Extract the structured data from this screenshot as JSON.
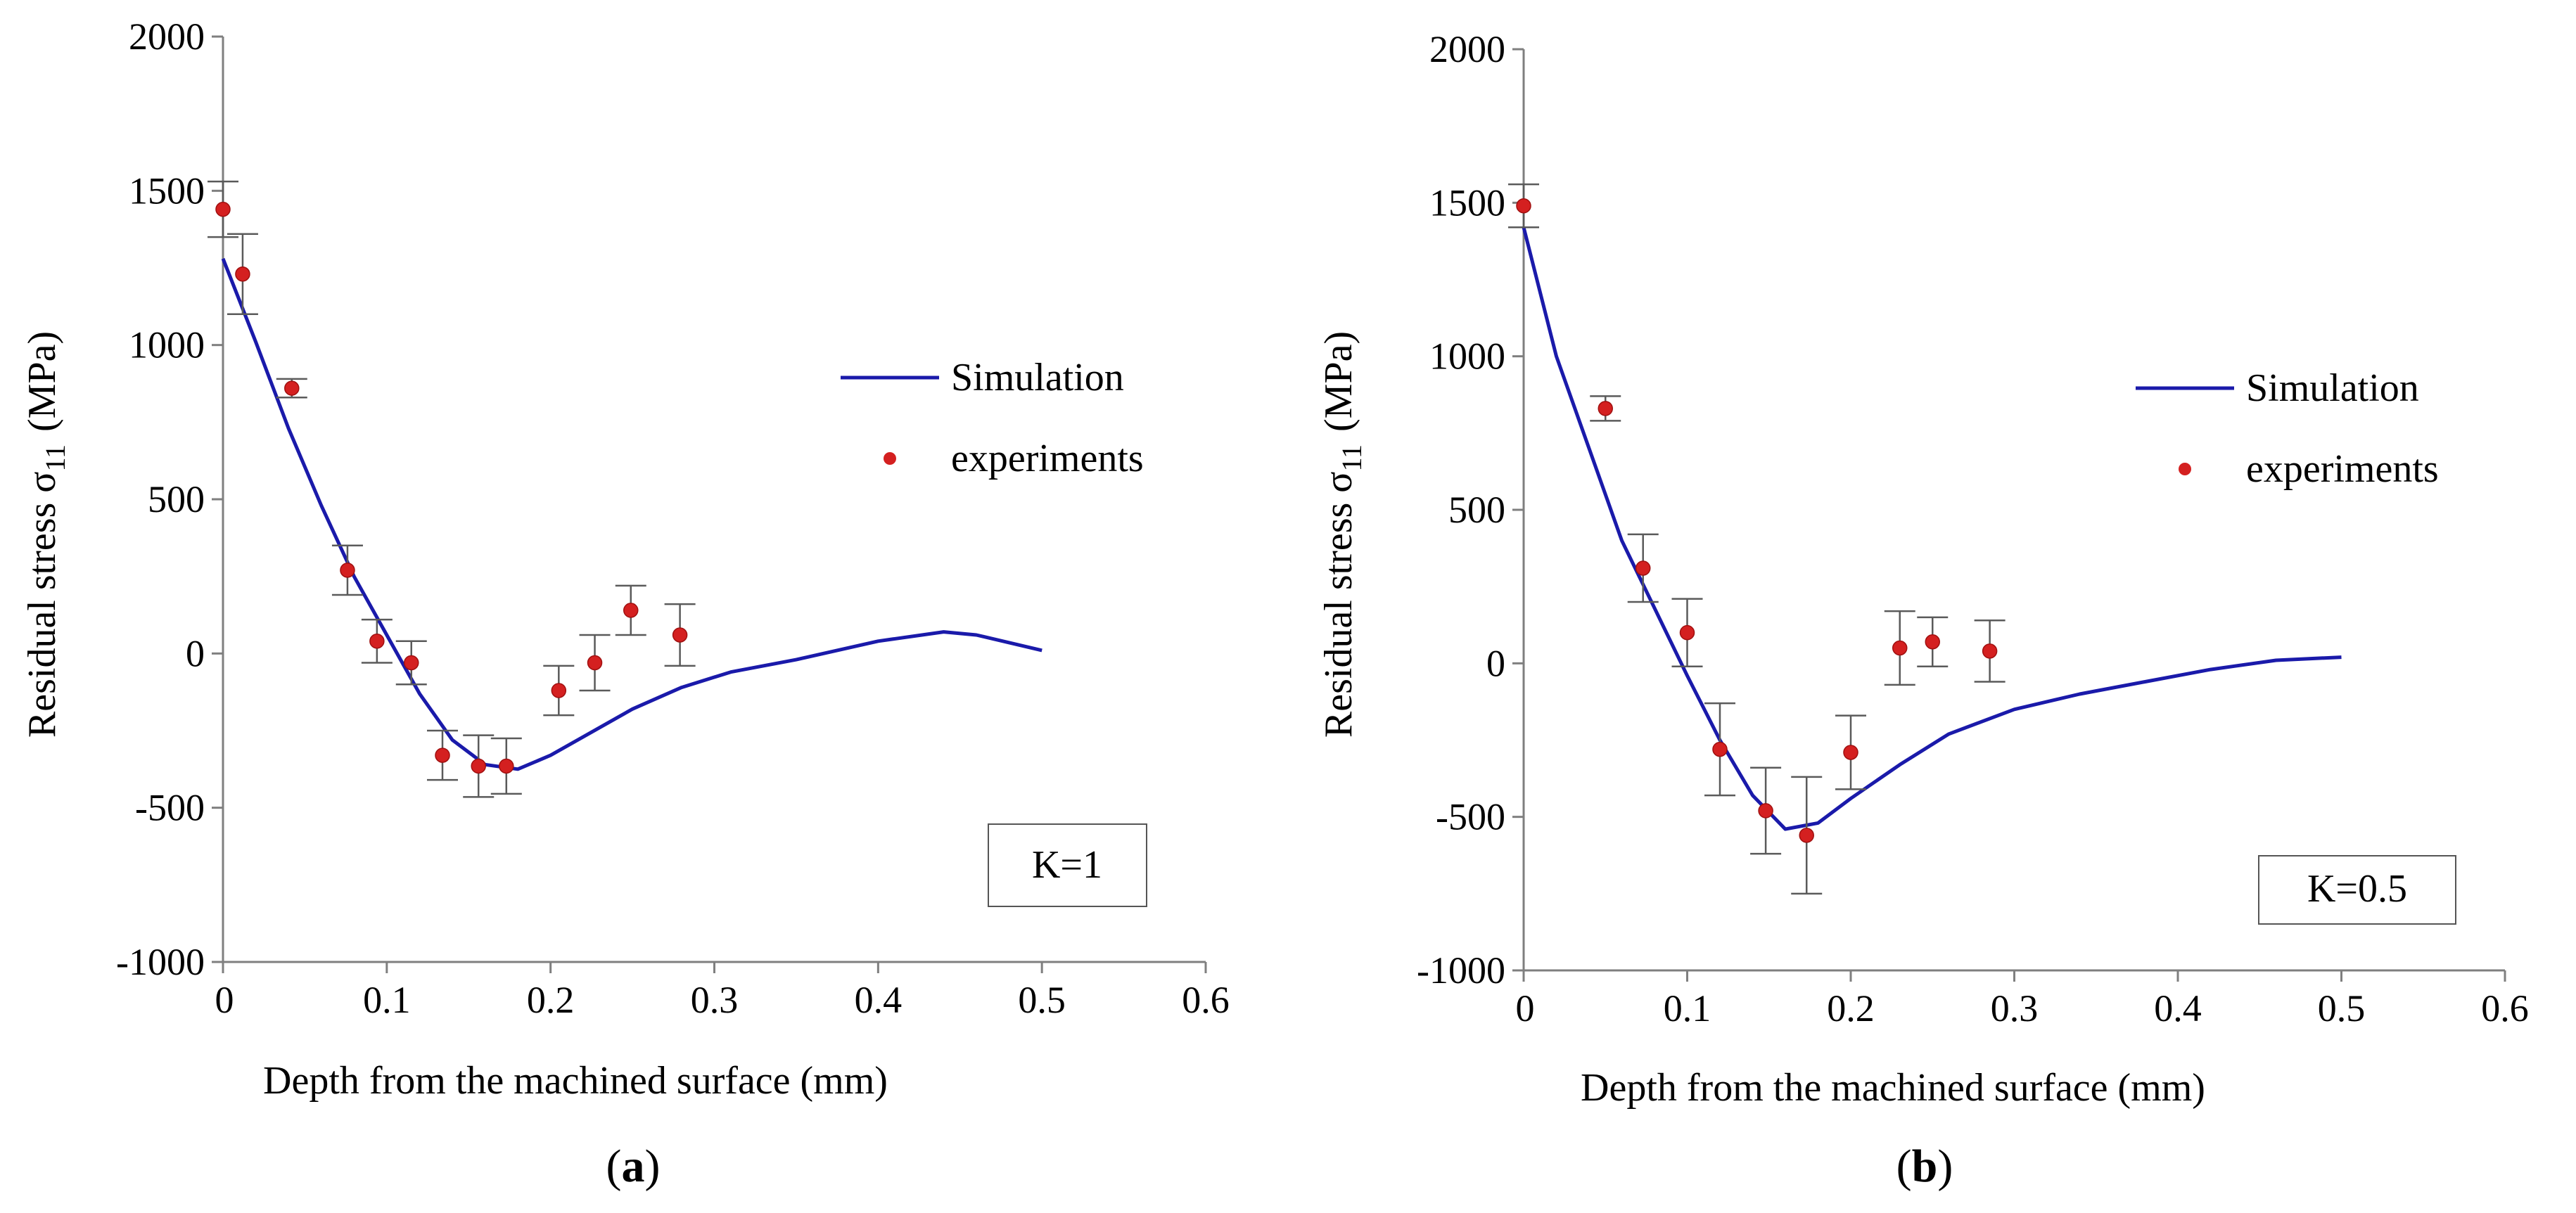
{
  "panels": [
    {
      "caption_letter": "a",
      "annotation": "K=1",
      "xlabel": "Depth from the machined surface (mm)",
      "ylabel_main": "Residual stress σ",
      "ylabel_sub": "11",
      "ylabel_unit": "(MPa)",
      "legend": {
        "simulation": "Simulation",
        "experiments": "experiments"
      }
    },
    {
      "caption_letter": "b",
      "annotation": "K=0.5",
      "xlabel": "Depth from the machined surface (mm)",
      "ylabel_main": "Residual stress σ",
      "ylabel_sub": "11",
      "ylabel_unit": "(MPa)",
      "legend": {
        "simulation": "Simulation",
        "experiments": "experiments"
      }
    }
  ],
  "colors": {
    "simulation": "#1a1aaa",
    "experiments": "#d42020",
    "errorbar": "#5a5a5a",
    "axis": "#7f7f7f"
  },
  "chart_data": [
    {
      "type": "line",
      "title": "(a)",
      "xlabel": "Depth from the machined surface (mm)",
      "ylabel": "Residual stress σ11 (MPa)",
      "xlim": [
        0,
        0.6
      ],
      "ylim": [
        -1000,
        2000
      ],
      "xticks": [
        0,
        0.1,
        0.2,
        0.3,
        0.4,
        0.5,
        0.6
      ],
      "xtick_labels": [
        "",
        "0.1",
        "0.2",
        "0.3",
        "0.4",
        "0.5",
        "0.6"
      ],
      "yticks": [
        -1000,
        -500,
        0,
        500,
        1000,
        1500,
        2000
      ],
      "ytick_labels": [
        "-1000",
        "-500",
        "0",
        "500",
        "1000",
        "1500",
        "2000"
      ],
      "zero_label": "0",
      "annotation": "K=1",
      "series": [
        {
          "name": "Simulation",
          "type": "line",
          "x": [
            0.0,
            0.02,
            0.04,
            0.06,
            0.08,
            0.1,
            0.12,
            0.14,
            0.16,
            0.18,
            0.2,
            0.22,
            0.25,
            0.28,
            0.31,
            0.35,
            0.4,
            0.44,
            0.46,
            0.5
          ],
          "y": [
            1280,
            1010,
            730,
            480,
            250,
            60,
            -130,
            -280,
            -360,
            -375,
            -330,
            -270,
            -180,
            -110,
            -60,
            -20,
            40,
            70,
            60,
            10
          ]
        },
        {
          "name": "experiments",
          "type": "scatter",
          "x": [
            0.0,
            0.012,
            0.042,
            0.076,
            0.094,
            0.115,
            0.134,
            0.156,
            0.173,
            0.205,
            0.227,
            0.249,
            0.279
          ],
          "y": [
            1440,
            1230,
            860,
            270,
            40,
            -30,
            -330,
            -365,
            -365,
            -120,
            -30,
            140,
            60
          ],
          "err": [
            90,
            130,
            30,
            80,
            70,
            70,
            80,
            100,
            90,
            80,
            90,
            80,
            100
          ]
        }
      ]
    },
    {
      "type": "line",
      "title": "(b)",
      "xlabel": "Depth from the machined surface (mm)",
      "ylabel": "Residual stress σ11 (MPa)",
      "xlim": [
        0,
        0.6
      ],
      "ylim": [
        -1000,
        2000
      ],
      "xticks": [
        0,
        0.1,
        0.2,
        0.3,
        0.4,
        0.5,
        0.6
      ],
      "xtick_labels": [
        "",
        "0.1",
        "0.2",
        "0.3",
        "0.4",
        "0.5",
        "0.6"
      ],
      "yticks": [
        -1000,
        -500,
        0,
        500,
        1000,
        1500,
        2000
      ],
      "ytick_labels": [
        "-1000",
        "-500",
        "0",
        "500",
        "1000",
        "1500",
        "2000"
      ],
      "zero_label": "0",
      "annotation": "K=0.5",
      "series": [
        {
          "name": "Simulation",
          "type": "line",
          "x": [
            0.0,
            0.02,
            0.04,
            0.06,
            0.08,
            0.1,
            0.12,
            0.14,
            0.16,
            0.18,
            0.2,
            0.23,
            0.26,
            0.3,
            0.34,
            0.38,
            0.42,
            0.46,
            0.5
          ],
          "y": [
            1420,
            1000,
            700,
            400,
            180,
            -40,
            -250,
            -430,
            -540,
            -520,
            -440,
            -330,
            -230,
            -150,
            -100,
            -60,
            -20,
            10,
            20
          ]
        },
        {
          "name": "experiments",
          "type": "scatter",
          "x": [
            0.0,
            0.05,
            0.073,
            0.1,
            0.12,
            0.148,
            0.173,
            0.2,
            0.23,
            0.25,
            0.285
          ],
          "y": [
            1490,
            830,
            310,
            100,
            -280,
            -480,
            -560,
            -290,
            50,
            70,
            40
          ],
          "err": [
            70,
            40,
            110,
            110,
            150,
            140,
            190,
            120,
            120,
            80,
            100
          ]
        }
      ]
    }
  ]
}
